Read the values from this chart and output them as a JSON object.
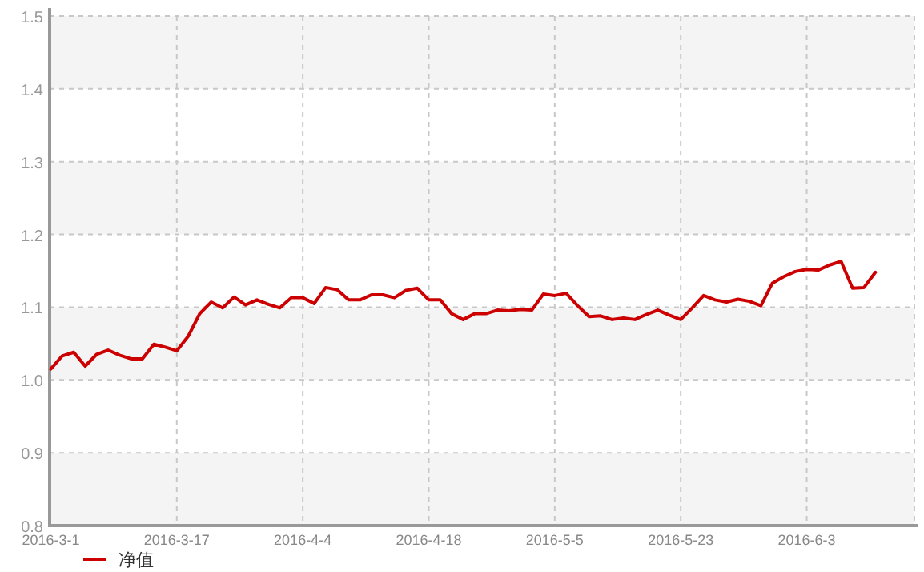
{
  "chart_data": {
    "type": "line",
    "categories": [
      "2016-3-1",
      null,
      null,
      null,
      null,
      null,
      null,
      null,
      null,
      null,
      null,
      "2016-3-17",
      null,
      null,
      null,
      null,
      null,
      null,
      null,
      null,
      null,
      null,
      "2016-4-4",
      null,
      null,
      null,
      null,
      null,
      null,
      null,
      null,
      null,
      null,
      "2016-4-18",
      null,
      null,
      null,
      null,
      null,
      null,
      null,
      null,
      null,
      null,
      "2016-5-5",
      null,
      null,
      null,
      null,
      null,
      null,
      null,
      null,
      null,
      null,
      "2016-5-23",
      null,
      null,
      null,
      null,
      null,
      null,
      null,
      null,
      null,
      null,
      "2016-6-3",
      null,
      null,
      null,
      null,
      null,
      null
    ],
    "series": [
      {
        "name": "净值",
        "color": "#cc0000",
        "values": [
          1.015,
          1.033,
          1.038,
          1.019,
          1.035,
          1.041,
          1.034,
          1.029,
          1.029,
          1.049,
          1.045,
          1.04,
          1.06,
          1.091,
          1.107,
          1.099,
          1.114,
          1.103,
          1.11,
          1.104,
          1.099,
          1.113,
          1.113,
          1.105,
          1.127,
          1.124,
          1.11,
          1.11,
          1.117,
          1.117,
          1.113,
          1.123,
          1.126,
          1.11,
          1.11,
          1.091,
          1.083,
          1.091,
          1.091,
          1.096,
          1.095,
          1.097,
          1.096,
          1.118,
          1.116,
          1.119,
          1.102,
          1.087,
          1.088,
          1.083,
          1.085,
          1.083,
          1.09,
          1.096,
          1.089,
          1.083,
          1.099,
          1.116,
          1.11,
          1.107,
          1.111,
          1.108,
          1.102,
          1.133,
          1.142,
          1.149,
          1.152,
          1.151,
          1.158,
          1.163,
          1.126,
          1.127,
          1.148
        ]
      }
    ],
    "ylim": [
      0.8,
      1.5
    ],
    "yticks": [
      0.8,
      0.9,
      {
        "value": 1.0,
        "label": "1.0"
      },
      1.1,
      1.2,
      1.3,
      1.4,
      1.5
    ],
    "grid": true,
    "legend": "bottom left",
    "marker": "none",
    "line_style": "solid"
  }
}
